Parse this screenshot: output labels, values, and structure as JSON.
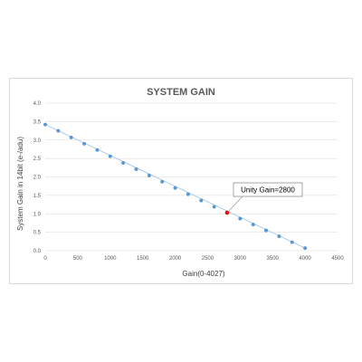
{
  "chart_data": {
    "type": "scatter",
    "title": "SYSTEM GAIN",
    "xlabel": "Gain(0-4027)",
    "ylabel": "System Gain in 14bit (e-/adu)",
    "xlim": [
      0,
      4500
    ],
    "ylim": [
      0,
      4.0
    ],
    "x_ticks": [
      "0",
      "500",
      "1000",
      "1500",
      "2000",
      "2500",
      "3000",
      "3500",
      "4000",
      "4500"
    ],
    "y_ticks": [
      "0.0",
      "0.5",
      "1.0",
      "1.5",
      "2.0",
      "2.5",
      "3.0",
      "3.5",
      "4.0"
    ],
    "grid": "horizontal",
    "series": [
      {
        "x": [
          0,
          200,
          400,
          600,
          800,
          1000,
          1200,
          1400,
          1600,
          1800,
          2000,
          2200,
          2400,
          2600,
          3000,
          3200,
          3400,
          3600,
          3800,
          4000
        ],
        "y": [
          3.42,
          3.25,
          3.07,
          2.9,
          2.73,
          2.56,
          2.38,
          2.21,
          2.04,
          1.87,
          1.7,
          1.53,
          1.36,
          1.19,
          0.87,
          0.71,
          0.55,
          0.39,
          0.23,
          0.07
        ],
        "color": "#5b9bd5"
      }
    ],
    "highlight": {
      "x": 2800,
      "y": 1.03,
      "color": "#ff0000"
    },
    "annotation": {
      "text": "Unity Gain=2800"
    }
  }
}
